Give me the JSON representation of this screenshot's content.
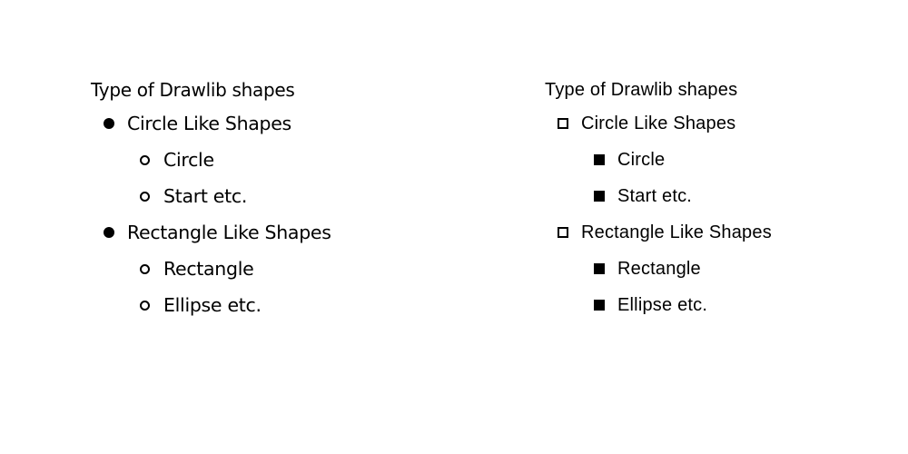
{
  "lists": [
    {
      "title": "Type of Drawlib shapes",
      "level1_marker_icon": "filled-disc",
      "level2_marker_icon": "hollow-circle",
      "items": [
        {
          "label": "Circle Like Shapes",
          "subitems": [
            "Circle",
            "Start etc."
          ]
        },
        {
          "label": "Rectangle Like Shapes",
          "subitems": [
            "Rectangle",
            "Ellipse etc."
          ]
        }
      ]
    },
    {
      "title": "Type of Drawlib shapes",
      "level1_marker_icon": "hollow-square",
      "level2_marker_icon": "filled-square",
      "items": [
        {
          "label": "Circle Like Shapes",
          "subitems": [
            "Circle",
            "Start etc."
          ]
        },
        {
          "label": "Rectangle Like Shapes",
          "subitems": [
            "Rectangle",
            "Ellipse etc."
          ]
        }
      ]
    }
  ]
}
